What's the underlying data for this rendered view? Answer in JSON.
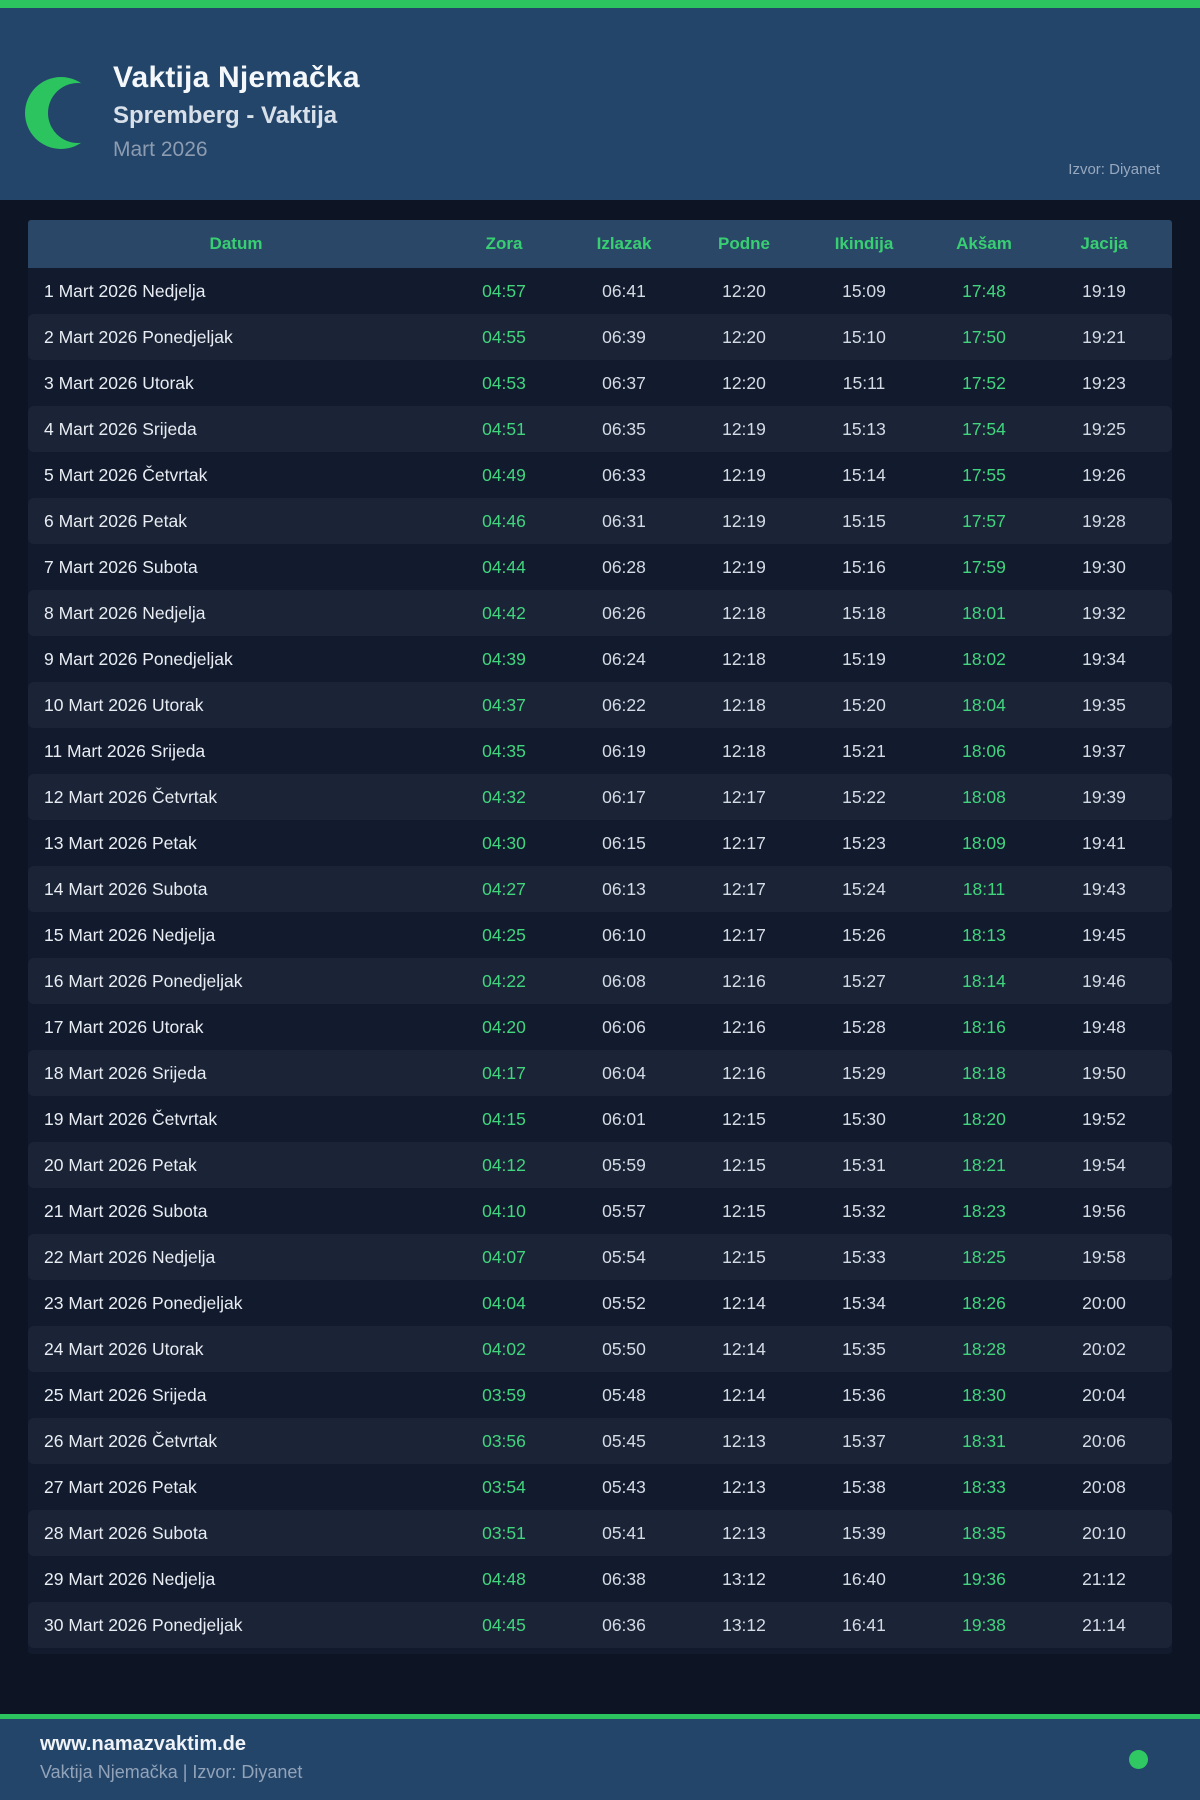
{
  "header": {
    "title": "Vaktija Njemačka",
    "subtitle": "Spremberg - Vaktija",
    "month": "Mart 2026",
    "source": "Izvor: Diyanet"
  },
  "table": {
    "columns": [
      "Datum",
      "Zora",
      "Izlazak",
      "Podne",
      "Ikindija",
      "Akšam",
      "Jacija"
    ],
    "rows": [
      {
        "datum": "1 Mart 2026 Nedjelja",
        "zora": "04:57",
        "izlazak": "06:41",
        "podne": "12:20",
        "ikindija": "15:09",
        "aksam": "17:48",
        "jacija": "19:19"
      },
      {
        "datum": "2 Mart 2026 Ponedjeljak",
        "zora": "04:55",
        "izlazak": "06:39",
        "podne": "12:20",
        "ikindija": "15:10",
        "aksam": "17:50",
        "jacija": "19:21"
      },
      {
        "datum": "3 Mart 2026 Utorak",
        "zora": "04:53",
        "izlazak": "06:37",
        "podne": "12:20",
        "ikindija": "15:11",
        "aksam": "17:52",
        "jacija": "19:23"
      },
      {
        "datum": "4 Mart 2026 Srijeda",
        "zora": "04:51",
        "izlazak": "06:35",
        "podne": "12:19",
        "ikindija": "15:13",
        "aksam": "17:54",
        "jacija": "19:25"
      },
      {
        "datum": "5 Mart 2026 Četvrtak",
        "zora": "04:49",
        "izlazak": "06:33",
        "podne": "12:19",
        "ikindija": "15:14",
        "aksam": "17:55",
        "jacija": "19:26"
      },
      {
        "datum": "6 Mart 2026 Petak",
        "zora": "04:46",
        "izlazak": "06:31",
        "podne": "12:19",
        "ikindija": "15:15",
        "aksam": "17:57",
        "jacija": "19:28"
      },
      {
        "datum": "7 Mart 2026 Subota",
        "zora": "04:44",
        "izlazak": "06:28",
        "podne": "12:19",
        "ikindija": "15:16",
        "aksam": "17:59",
        "jacija": "19:30"
      },
      {
        "datum": "8 Mart 2026 Nedjelja",
        "zora": "04:42",
        "izlazak": "06:26",
        "podne": "12:18",
        "ikindija": "15:18",
        "aksam": "18:01",
        "jacija": "19:32"
      },
      {
        "datum": "9 Mart 2026 Ponedjeljak",
        "zora": "04:39",
        "izlazak": "06:24",
        "podne": "12:18",
        "ikindija": "15:19",
        "aksam": "18:02",
        "jacija": "19:34"
      },
      {
        "datum": "10 Mart 2026 Utorak",
        "zora": "04:37",
        "izlazak": "06:22",
        "podne": "12:18",
        "ikindija": "15:20",
        "aksam": "18:04",
        "jacija": "19:35"
      },
      {
        "datum": "11 Mart 2026 Srijeda",
        "zora": "04:35",
        "izlazak": "06:19",
        "podne": "12:18",
        "ikindija": "15:21",
        "aksam": "18:06",
        "jacija": "19:37"
      },
      {
        "datum": "12 Mart 2026 Četvrtak",
        "zora": "04:32",
        "izlazak": "06:17",
        "podne": "12:17",
        "ikindija": "15:22",
        "aksam": "18:08",
        "jacija": "19:39"
      },
      {
        "datum": "13 Mart 2026 Petak",
        "zora": "04:30",
        "izlazak": "06:15",
        "podne": "12:17",
        "ikindija": "15:23",
        "aksam": "18:09",
        "jacija": "19:41"
      },
      {
        "datum": "14 Mart 2026 Subota",
        "zora": "04:27",
        "izlazak": "06:13",
        "podne": "12:17",
        "ikindija": "15:24",
        "aksam": "18:11",
        "jacija": "19:43"
      },
      {
        "datum": "15 Mart 2026 Nedjelja",
        "zora": "04:25",
        "izlazak": "06:10",
        "podne": "12:17",
        "ikindija": "15:26",
        "aksam": "18:13",
        "jacija": "19:45"
      },
      {
        "datum": "16 Mart 2026 Ponedjeljak",
        "zora": "04:22",
        "izlazak": "06:08",
        "podne": "12:16",
        "ikindija": "15:27",
        "aksam": "18:14",
        "jacija": "19:46"
      },
      {
        "datum": "17 Mart 2026 Utorak",
        "zora": "04:20",
        "izlazak": "06:06",
        "podne": "12:16",
        "ikindija": "15:28",
        "aksam": "18:16",
        "jacija": "19:48"
      },
      {
        "datum": "18 Mart 2026 Srijeda",
        "zora": "04:17",
        "izlazak": "06:04",
        "podne": "12:16",
        "ikindija": "15:29",
        "aksam": "18:18",
        "jacija": "19:50"
      },
      {
        "datum": "19 Mart 2026 Četvrtak",
        "zora": "04:15",
        "izlazak": "06:01",
        "podne": "12:15",
        "ikindija": "15:30",
        "aksam": "18:20",
        "jacija": "19:52"
      },
      {
        "datum": "20 Mart 2026 Petak",
        "zora": "04:12",
        "izlazak": "05:59",
        "podne": "12:15",
        "ikindija": "15:31",
        "aksam": "18:21",
        "jacija": "19:54"
      },
      {
        "datum": "21 Mart 2026 Subota",
        "zora": "04:10",
        "izlazak": "05:57",
        "podne": "12:15",
        "ikindija": "15:32",
        "aksam": "18:23",
        "jacija": "19:56"
      },
      {
        "datum": "22 Mart 2026 Nedjelja",
        "zora": "04:07",
        "izlazak": "05:54",
        "podne": "12:15",
        "ikindija": "15:33",
        "aksam": "18:25",
        "jacija": "19:58"
      },
      {
        "datum": "23 Mart 2026 Ponedjeljak",
        "zora": "04:04",
        "izlazak": "05:52",
        "podne": "12:14",
        "ikindija": "15:34",
        "aksam": "18:26",
        "jacija": "20:00"
      },
      {
        "datum": "24 Mart 2026 Utorak",
        "zora": "04:02",
        "izlazak": "05:50",
        "podne": "12:14",
        "ikindija": "15:35",
        "aksam": "18:28",
        "jacija": "20:02"
      },
      {
        "datum": "25 Mart 2026 Srijeda",
        "zora": "03:59",
        "izlazak": "05:48",
        "podne": "12:14",
        "ikindija": "15:36",
        "aksam": "18:30",
        "jacija": "20:04"
      },
      {
        "datum": "26 Mart 2026 Četvrtak",
        "zora": "03:56",
        "izlazak": "05:45",
        "podne": "12:13",
        "ikindija": "15:37",
        "aksam": "18:31",
        "jacija": "20:06"
      },
      {
        "datum": "27 Mart 2026 Petak",
        "zora": "03:54",
        "izlazak": "05:43",
        "podne": "12:13",
        "ikindija": "15:38",
        "aksam": "18:33",
        "jacija": "20:08"
      },
      {
        "datum": "28 Mart 2026 Subota",
        "zora": "03:51",
        "izlazak": "05:41",
        "podne": "12:13",
        "ikindija": "15:39",
        "aksam": "18:35",
        "jacija": "20:10"
      },
      {
        "datum": "29 Mart 2026 Nedjelja",
        "zora": "04:48",
        "izlazak": "06:38",
        "podne": "13:12",
        "ikindija": "16:40",
        "aksam": "19:36",
        "jacija": "21:12"
      },
      {
        "datum": "30 Mart 2026 Ponedjeljak",
        "zora": "04:45",
        "izlazak": "06:36",
        "podne": "13:12",
        "ikindija": "16:41",
        "aksam": "19:38",
        "jacija": "21:14"
      }
    ]
  },
  "footer": {
    "site": "www.namazvaktim.de",
    "tagline": "Vaktija Njemačka | Izvor: Diyanet"
  },
  "colors": {
    "accent_green": "#2bc45f",
    "header_green_text": "#38cf72",
    "value_green": "#41d57e",
    "header_navy": "#23456a",
    "page_bg": "#0d1524",
    "table_bg": "#121b2d",
    "row_alt_bg": "#1a2436"
  }
}
